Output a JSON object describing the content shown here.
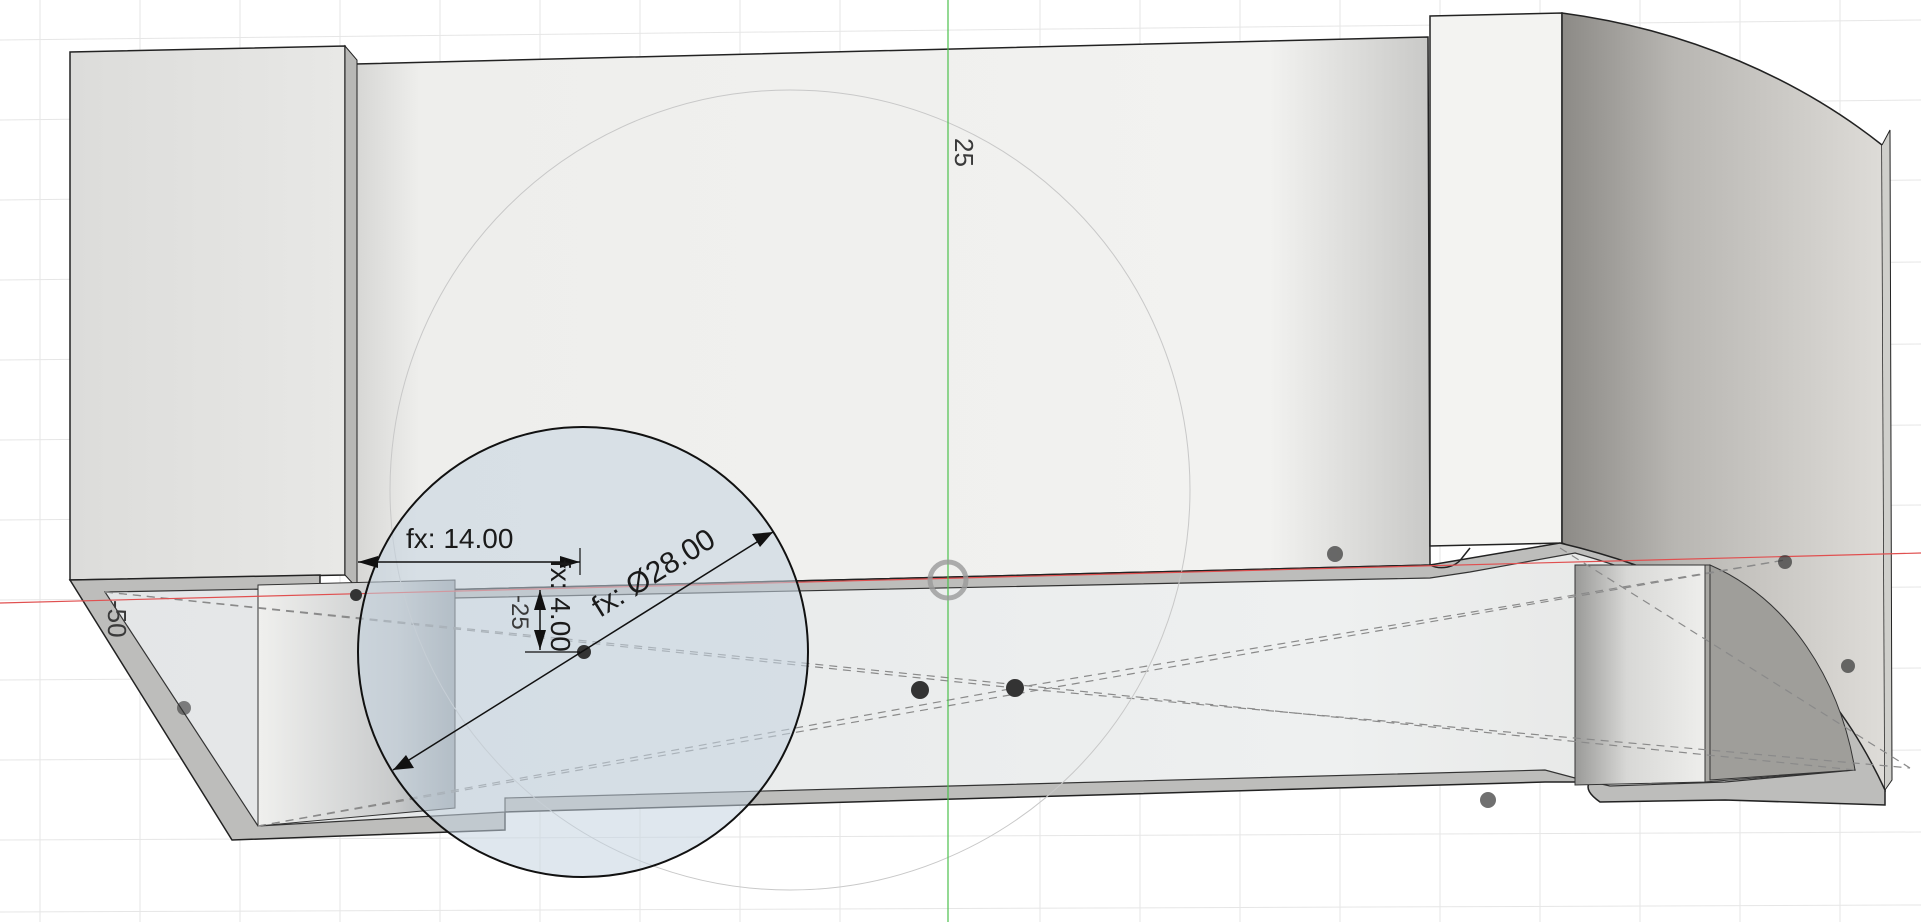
{
  "viewport": {
    "name": "3D modeling viewport - sketch on sectioned body",
    "axis_labels": {
      "top": "25",
      "left": "-50",
      "small": "-25"
    },
    "dimensions": {
      "horizontal": "fx: 14.00",
      "vertical": "fx: 4.00",
      "diameter": "fx: Ø28.00"
    },
    "colors": {
      "background": "#ffffff",
      "grid": "#e6e6e6",
      "x_axis": "#e05050",
      "y_axis": "#4cc04c",
      "body_light": "#ececea",
      "body_dark": "#8a8884",
      "section_fill": "#bfbfbd",
      "sketch_profile": "#c4d4e0"
    }
  }
}
